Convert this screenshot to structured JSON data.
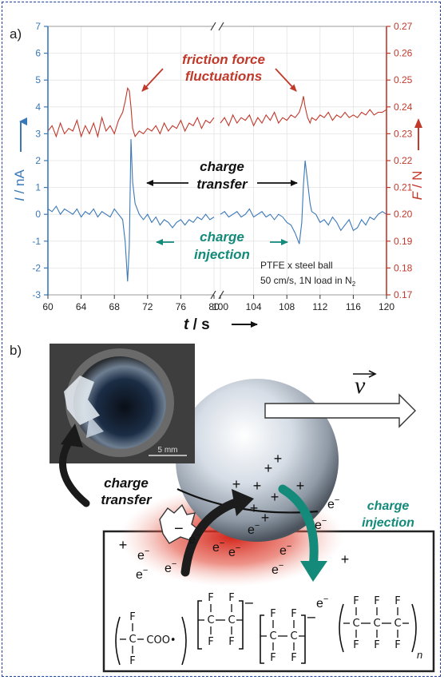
{
  "panel_a_label": "a)",
  "panel_b_label": "b)",
  "annotations": {
    "friction_line1": "friction force",
    "friction_line2": "fluctuations",
    "charge_transfer_line1": "charge",
    "charge_transfer_line2": "transfer",
    "charge_injection_line1": "charge",
    "charge_injection_line2": "injection",
    "conditions_line1": "PTFE x  steel ball",
    "conditions_line2": "50 cm/s, 1N load in N"
  },
  "conditions_subscript": "2",
  "axis_labels": {
    "left_symbol": "I",
    "left_unit": " / nA",
    "right_symbol": "F",
    "right_unit": " / N",
    "x_symbol": "t",
    "x_unit": " / s"
  },
  "colors": {
    "current": "#3a78b8",
    "friction": "#c0392b",
    "injection": "#138a7a",
    "frame": "#1f3f9f"
  },
  "chart_data": {
    "type": "line",
    "x_tick_labels": [
      "60",
      "64",
      "68",
      "72",
      "76",
      "80",
      "100",
      "104",
      "108",
      "112",
      "116",
      "120"
    ],
    "left_axis": {
      "ticks": [
        7,
        6,
        5,
        4,
        3,
        2,
        1,
        0,
        -1,
        -2,
        -3
      ],
      "ylim": [
        -3,
        7
      ]
    },
    "right_axis": {
      "ticks": [
        "0.27",
        "0.26",
        "0.25",
        "0.24",
        "0.23",
        "0.22",
        "0.21",
        "0.20",
        "0.19",
        "0.18",
        "0.17"
      ],
      "ylim": [
        0.17,
        0.27
      ]
    },
    "axis_break": true,
    "series": [
      {
        "axis": "left",
        "segment1_x": [
          60,
          60.5,
          61,
          61.5,
          62,
          62.5,
          63,
          63.5,
          64,
          64.5,
          65,
          65.5,
          66,
          66.5,
          67,
          67.5,
          68,
          68.5,
          69,
          69.3,
          69.6,
          69.8,
          70,
          70.2,
          70.5,
          71,
          71.5,
          72,
          72.5,
          73,
          73.5,
          74,
          74.5,
          75,
          75.5,
          76,
          76.5,
          77,
          77.5,
          78,
          78.5,
          79,
          79.5,
          80
        ],
        "segment1_y": [
          0.2,
          0.1,
          0.3,
          0.0,
          0.2,
          0.1,
          0.0,
          0.2,
          -0.1,
          0.1,
          0.0,
          0.2,
          -0.1,
          0.1,
          0.0,
          -0.1,
          0.2,
          0.0,
          -0.2,
          -1.0,
          -2.5,
          -1.2,
          2.8,
          1.2,
          0.4,
          0.0,
          -0.2,
          0.0,
          -0.3,
          -0.1,
          -0.4,
          -0.2,
          -0.3,
          -0.5,
          -0.3,
          -0.2,
          -0.4,
          -0.2,
          -0.3,
          -0.1,
          -0.2,
          0.0,
          -0.2,
          -0.1
        ],
        "segment2_x": [
          100,
          100.5,
          101,
          101.5,
          102,
          102.5,
          103,
          103.5,
          104,
          104.5,
          105,
          105.5,
          106,
          106.5,
          107,
          107.5,
          108,
          108.5,
          109,
          109.5,
          109.8,
          110,
          110.2,
          110.5,
          110.8,
          111,
          111.5,
          112,
          112.5,
          113,
          113.5,
          114,
          114.5,
          115,
          115.5,
          116,
          116.5,
          117,
          117.5,
          118,
          118.5,
          119,
          119.5,
          120
        ],
        "segment2_y": [
          0.0,
          0.1,
          -0.1,
          0.0,
          0.1,
          -0.1,
          0.0,
          0.2,
          -0.1,
          0.0,
          0.1,
          -0.1,
          0.0,
          -0.2,
          0.0,
          -0.1,
          -0.3,
          -0.4,
          -0.7,
          -1.1,
          -0.3,
          1.1,
          2.0,
          1.2,
          0.4,
          0.1,
          0.0,
          -0.3,
          -0.2,
          -0.4,
          -0.1,
          -0.3,
          -0.6,
          -0.4,
          -0.2,
          -0.6,
          -0.5,
          -0.2,
          -0.4,
          -0.1,
          -0.2,
          0.0,
          0.1,
          0.0
        ]
      },
      {
        "axis": "right",
        "segment1_x": [
          60,
          60.5,
          61,
          61.5,
          62,
          62.5,
          63,
          63.5,
          64,
          64.5,
          65,
          65.5,
          66,
          66.5,
          67,
          67.5,
          68,
          68.5,
          69,
          69.3,
          69.6,
          69.8,
          70,
          70.2,
          70.5,
          71,
          71.5,
          72,
          72.5,
          73,
          73.5,
          74,
          74.5,
          75,
          75.5,
          76,
          76.5,
          77,
          77.5,
          78,
          78.5,
          79,
          79.5,
          80
        ],
        "segment1_y": [
          0.231,
          0.233,
          0.229,
          0.234,
          0.23,
          0.232,
          0.231,
          0.235,
          0.229,
          0.233,
          0.23,
          0.234,
          0.229,
          0.236,
          0.231,
          0.233,
          0.23,
          0.235,
          0.238,
          0.242,
          0.247,
          0.246,
          0.24,
          0.232,
          0.229,
          0.231,
          0.23,
          0.232,
          0.231,
          0.233,
          0.23,
          0.234,
          0.231,
          0.233,
          0.232,
          0.235,
          0.231,
          0.234,
          0.233,
          0.236,
          0.232,
          0.235,
          0.234,
          0.236
        ],
        "segment2_x": [
          100,
          100.5,
          101,
          101.5,
          102,
          102.5,
          103,
          103.5,
          104,
          104.5,
          105,
          105.5,
          106,
          106.5,
          107,
          107.5,
          108,
          108.5,
          109,
          109.5,
          109.8,
          110,
          110.2,
          110.5,
          110.8,
          111,
          111.5,
          112,
          112.5,
          113,
          113.5,
          114,
          114.5,
          115,
          115.5,
          116,
          116.5,
          117,
          117.5,
          118,
          118.5,
          119,
          119.5,
          120
        ],
        "segment2_y": [
          0.234,
          0.236,
          0.233,
          0.237,
          0.234,
          0.236,
          0.235,
          0.237,
          0.233,
          0.236,
          0.234,
          0.237,
          0.235,
          0.238,
          0.234,
          0.236,
          0.235,
          0.237,
          0.236,
          0.238,
          0.241,
          0.244,
          0.24,
          0.236,
          0.234,
          0.236,
          0.235,
          0.237,
          0.236,
          0.238,
          0.235,
          0.237,
          0.236,
          0.238,
          0.236,
          0.237,
          0.236,
          0.238,
          0.237,
          0.239,
          0.237,
          0.238,
          0.238,
          0.239
        ]
      }
    ]
  },
  "panel_b": {
    "scale_label": "5 mm",
    "velocity_symbol": "v",
    "label_charge_transfer_1": "charge",
    "label_charge_transfer_2": "transfer",
    "label_charge_injection_1": "charge",
    "label_charge_injection_2": "injection",
    "plus": "+",
    "electron": "e",
    "minus": "−",
    "group_F": "F",
    "group_C": "C",
    "group_COO": "COO•",
    "subscript_n": "n"
  }
}
